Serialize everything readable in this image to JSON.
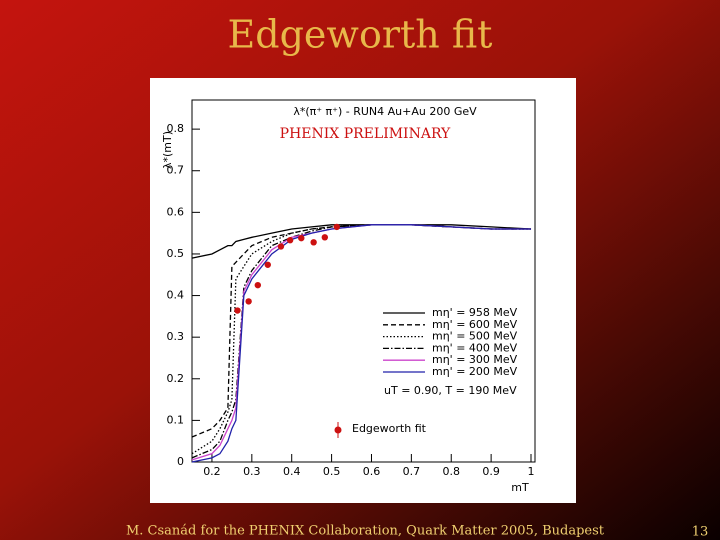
{
  "slide": {
    "title": "Edgeworth fit",
    "footer": "M. Csanád for the PHENIX Collaboration, Quark Matter 2005, Budapest",
    "page": "13"
  },
  "chart_data": {
    "type": "line",
    "title": "λ*(π⁺ π⁺) - RUN4 Au+Au 200 GeV",
    "subtitle": "PHENIX PRELIMINARY",
    "x_label": "mT",
    "y_label": "λ*(mT)",
    "annotations": [
      "uT = 0.90, T = 190 MeV"
    ],
    "xlim": [
      0.15,
      1.01
    ],
    "ylim": [
      0,
      0.87
    ],
    "xticks": [
      0.2,
      0.3,
      0.4,
      0.5,
      0.6,
      0.7,
      0.8,
      0.9,
      1
    ],
    "yticks": [
      0,
      0.1,
      0.2,
      0.3,
      0.4,
      0.5,
      0.6,
      0.7,
      0.8
    ],
    "x": [
      0.15,
      0.2,
      0.22,
      0.24,
      0.25,
      0.26,
      0.28,
      0.3,
      0.35,
      0.4,
      0.45,
      0.5,
      0.6,
      0.7,
      0.8,
      0.9,
      1.0
    ],
    "series": [
      {
        "name": "mη' = 958 MeV",
        "color": "#000000",
        "dash": "none",
        "values": [
          0.49,
          0.5,
          0.51,
          0.52,
          0.52,
          0.53,
          0.535,
          0.54,
          0.55,
          0.56,
          0.565,
          0.57,
          0.57,
          0.57,
          0.57,
          0.565,
          0.56
        ]
      },
      {
        "name": "mη' = 600 MeV",
        "color": "#000000",
        "dash": "5 3",
        "values": [
          0.06,
          0.08,
          0.1,
          0.13,
          0.47,
          0.48,
          0.5,
          0.52,
          0.54,
          0.55,
          0.56,
          0.565,
          0.57,
          0.57,
          0.565,
          0.56,
          0.56
        ]
      },
      {
        "name": "mη' = 500 MeV",
        "color": "#000000",
        "dash": "1.5 2",
        "values": [
          0.02,
          0.05,
          0.08,
          0.12,
          0.15,
          0.44,
          0.47,
          0.5,
          0.53,
          0.55,
          0.56,
          0.565,
          0.57,
          0.57,
          0.565,
          0.56,
          0.56
        ]
      },
      {
        "name": "mη' = 400 MeV",
        "color": "#000000",
        "dash": "6 2 1.5 2",
        "values": [
          0.01,
          0.03,
          0.05,
          0.1,
          0.12,
          0.15,
          0.42,
          0.46,
          0.52,
          0.54,
          0.555,
          0.565,
          0.57,
          0.57,
          0.565,
          0.56,
          0.56
        ]
      },
      {
        "name": "mη' = 300 MeV",
        "color": "#cc44cc",
        "dash": "none",
        "values": [
          0.005,
          0.02,
          0.04,
          0.08,
          0.1,
          0.13,
          0.41,
          0.45,
          0.51,
          0.54,
          0.55,
          0.56,
          0.57,
          0.57,
          0.565,
          0.56,
          0.56
        ]
      },
      {
        "name": "mη' = 200 MeV",
        "color": "#2222aa",
        "dash": "none",
        "values": [
          0,
          0.01,
          0.02,
          0.05,
          0.08,
          0.1,
          0.4,
          0.44,
          0.5,
          0.535,
          0.55,
          0.56,
          0.57,
          0.57,
          0.565,
          0.56,
          0.56
        ]
      }
    ],
    "points": {
      "name": "Edgeworth fit",
      "color": "#cc1111",
      "x": [
        0.264,
        0.292,
        0.315,
        0.34,
        0.373,
        0.396,
        0.424,
        0.455,
        0.483,
        0.513
      ],
      "values": [
        0.364,
        0.386,
        0.425,
        0.474,
        0.518,
        0.533,
        0.538,
        0.528,
        0.54,
        0.565
      ]
    }
  }
}
